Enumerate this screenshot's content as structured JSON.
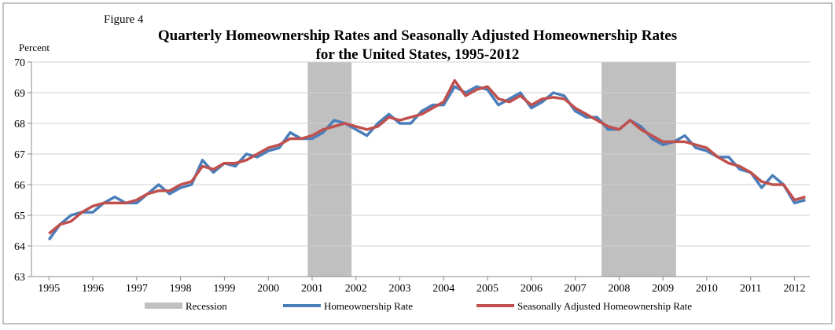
{
  "chart_data": {
    "type": "line",
    "figure_label": "Figure 4",
    "title_lines": [
      "Quarterly Homeownership Rates and Seasonally Adjusted Homeownership Rates",
      "for the United States, 1995-2012"
    ],
    "ylabel": "Percent",
    "x": [
      1995,
      1995.25,
      1995.5,
      1995.75,
      1996,
      1996.25,
      1996.5,
      1996.75,
      1997,
      1997.25,
      1997.5,
      1997.75,
      1998,
      1998.25,
      1998.5,
      1998.75,
      1999,
      1999.25,
      1999.5,
      1999.75,
      2000,
      2000.25,
      2000.5,
      2000.75,
      2001,
      2001.25,
      2001.5,
      2001.75,
      2002,
      2002.25,
      2002.5,
      2002.75,
      2003,
      2003.25,
      2003.5,
      2003.75,
      2004,
      2004.25,
      2004.5,
      2004.75,
      2005,
      2005.25,
      2005.5,
      2005.75,
      2006,
      2006.25,
      2006.5,
      2006.75,
      2007,
      2007.25,
      2007.5,
      2007.75,
      2008,
      2008.25,
      2008.5,
      2008.75,
      2009,
      2009.25,
      2009.5,
      2009.75,
      2010,
      2010.25,
      2010.5,
      2010.75,
      2011,
      2011.25,
      2011.5,
      2011.75,
      2012,
      2012.25
    ],
    "series": [
      {
        "name": "Homeownership Rate",
        "color": "#4a7ebb",
        "values": [
          64.2,
          64.7,
          65.0,
          65.1,
          65.1,
          65.4,
          65.6,
          65.4,
          65.4,
          65.7,
          66.0,
          65.7,
          65.9,
          66.0,
          66.8,
          66.4,
          66.7,
          66.6,
          67.0,
          66.9,
          67.1,
          67.2,
          67.7,
          67.5,
          67.5,
          67.7,
          68.1,
          68.0,
          67.8,
          67.6,
          68.0,
          68.3,
          68.0,
          68.0,
          68.4,
          68.6,
          68.6,
          69.2,
          69.0,
          69.2,
          69.1,
          68.6,
          68.8,
          69.0,
          68.5,
          68.7,
          69.0,
          68.9,
          68.4,
          68.2,
          68.2,
          67.8,
          67.8,
          68.1,
          67.9,
          67.5,
          67.3,
          67.4,
          67.6,
          67.2,
          67.1,
          66.9,
          66.9,
          66.5,
          66.4,
          65.9,
          66.3,
          66.0,
          65.4,
          65.5
        ]
      },
      {
        "name": "Seasonally Adjusted Homeownership Rate",
        "color": "#c0504d",
        "values": [
          64.4,
          64.7,
          64.8,
          65.1,
          65.3,
          65.4,
          65.4,
          65.4,
          65.5,
          65.7,
          65.8,
          65.8,
          66.0,
          66.1,
          66.6,
          66.5,
          66.7,
          66.7,
          66.8,
          67.0,
          67.2,
          67.3,
          67.5,
          67.5,
          67.6,
          67.8,
          67.9,
          68.0,
          67.9,
          67.8,
          67.9,
          68.2,
          68.1,
          68.2,
          68.3,
          68.5,
          68.7,
          69.4,
          68.9,
          69.1,
          69.2,
          68.8,
          68.7,
          68.9,
          68.6,
          68.8,
          68.85,
          68.8,
          68.5,
          68.3,
          68.1,
          67.9,
          67.8,
          68.1,
          67.8,
          67.6,
          67.4,
          67.4,
          67.4,
          67.3,
          67.2,
          66.9,
          66.7,
          66.6,
          66.4,
          66.1,
          66.0,
          66.0,
          65.5,
          65.6
        ]
      }
    ],
    "recession_label": "Recession",
    "recession_color": "#c0c0c0",
    "recessions": [
      [
        2000.9,
        2001.9
      ],
      [
        2007.6,
        2009.3
      ]
    ],
    "xlim": [
      1994.6,
      2012.35
    ],
    "xticks": [
      1995,
      1996,
      1997,
      1998,
      1999,
      2000,
      2001,
      2002,
      2003,
      2004,
      2005,
      2006,
      2007,
      2008,
      2009,
      2010,
      2011,
      2012
    ],
    "ylim": [
      63,
      70
    ],
    "yticks": [
      63,
      64,
      65,
      66,
      67,
      68,
      69,
      70
    ],
    "grid": true
  }
}
